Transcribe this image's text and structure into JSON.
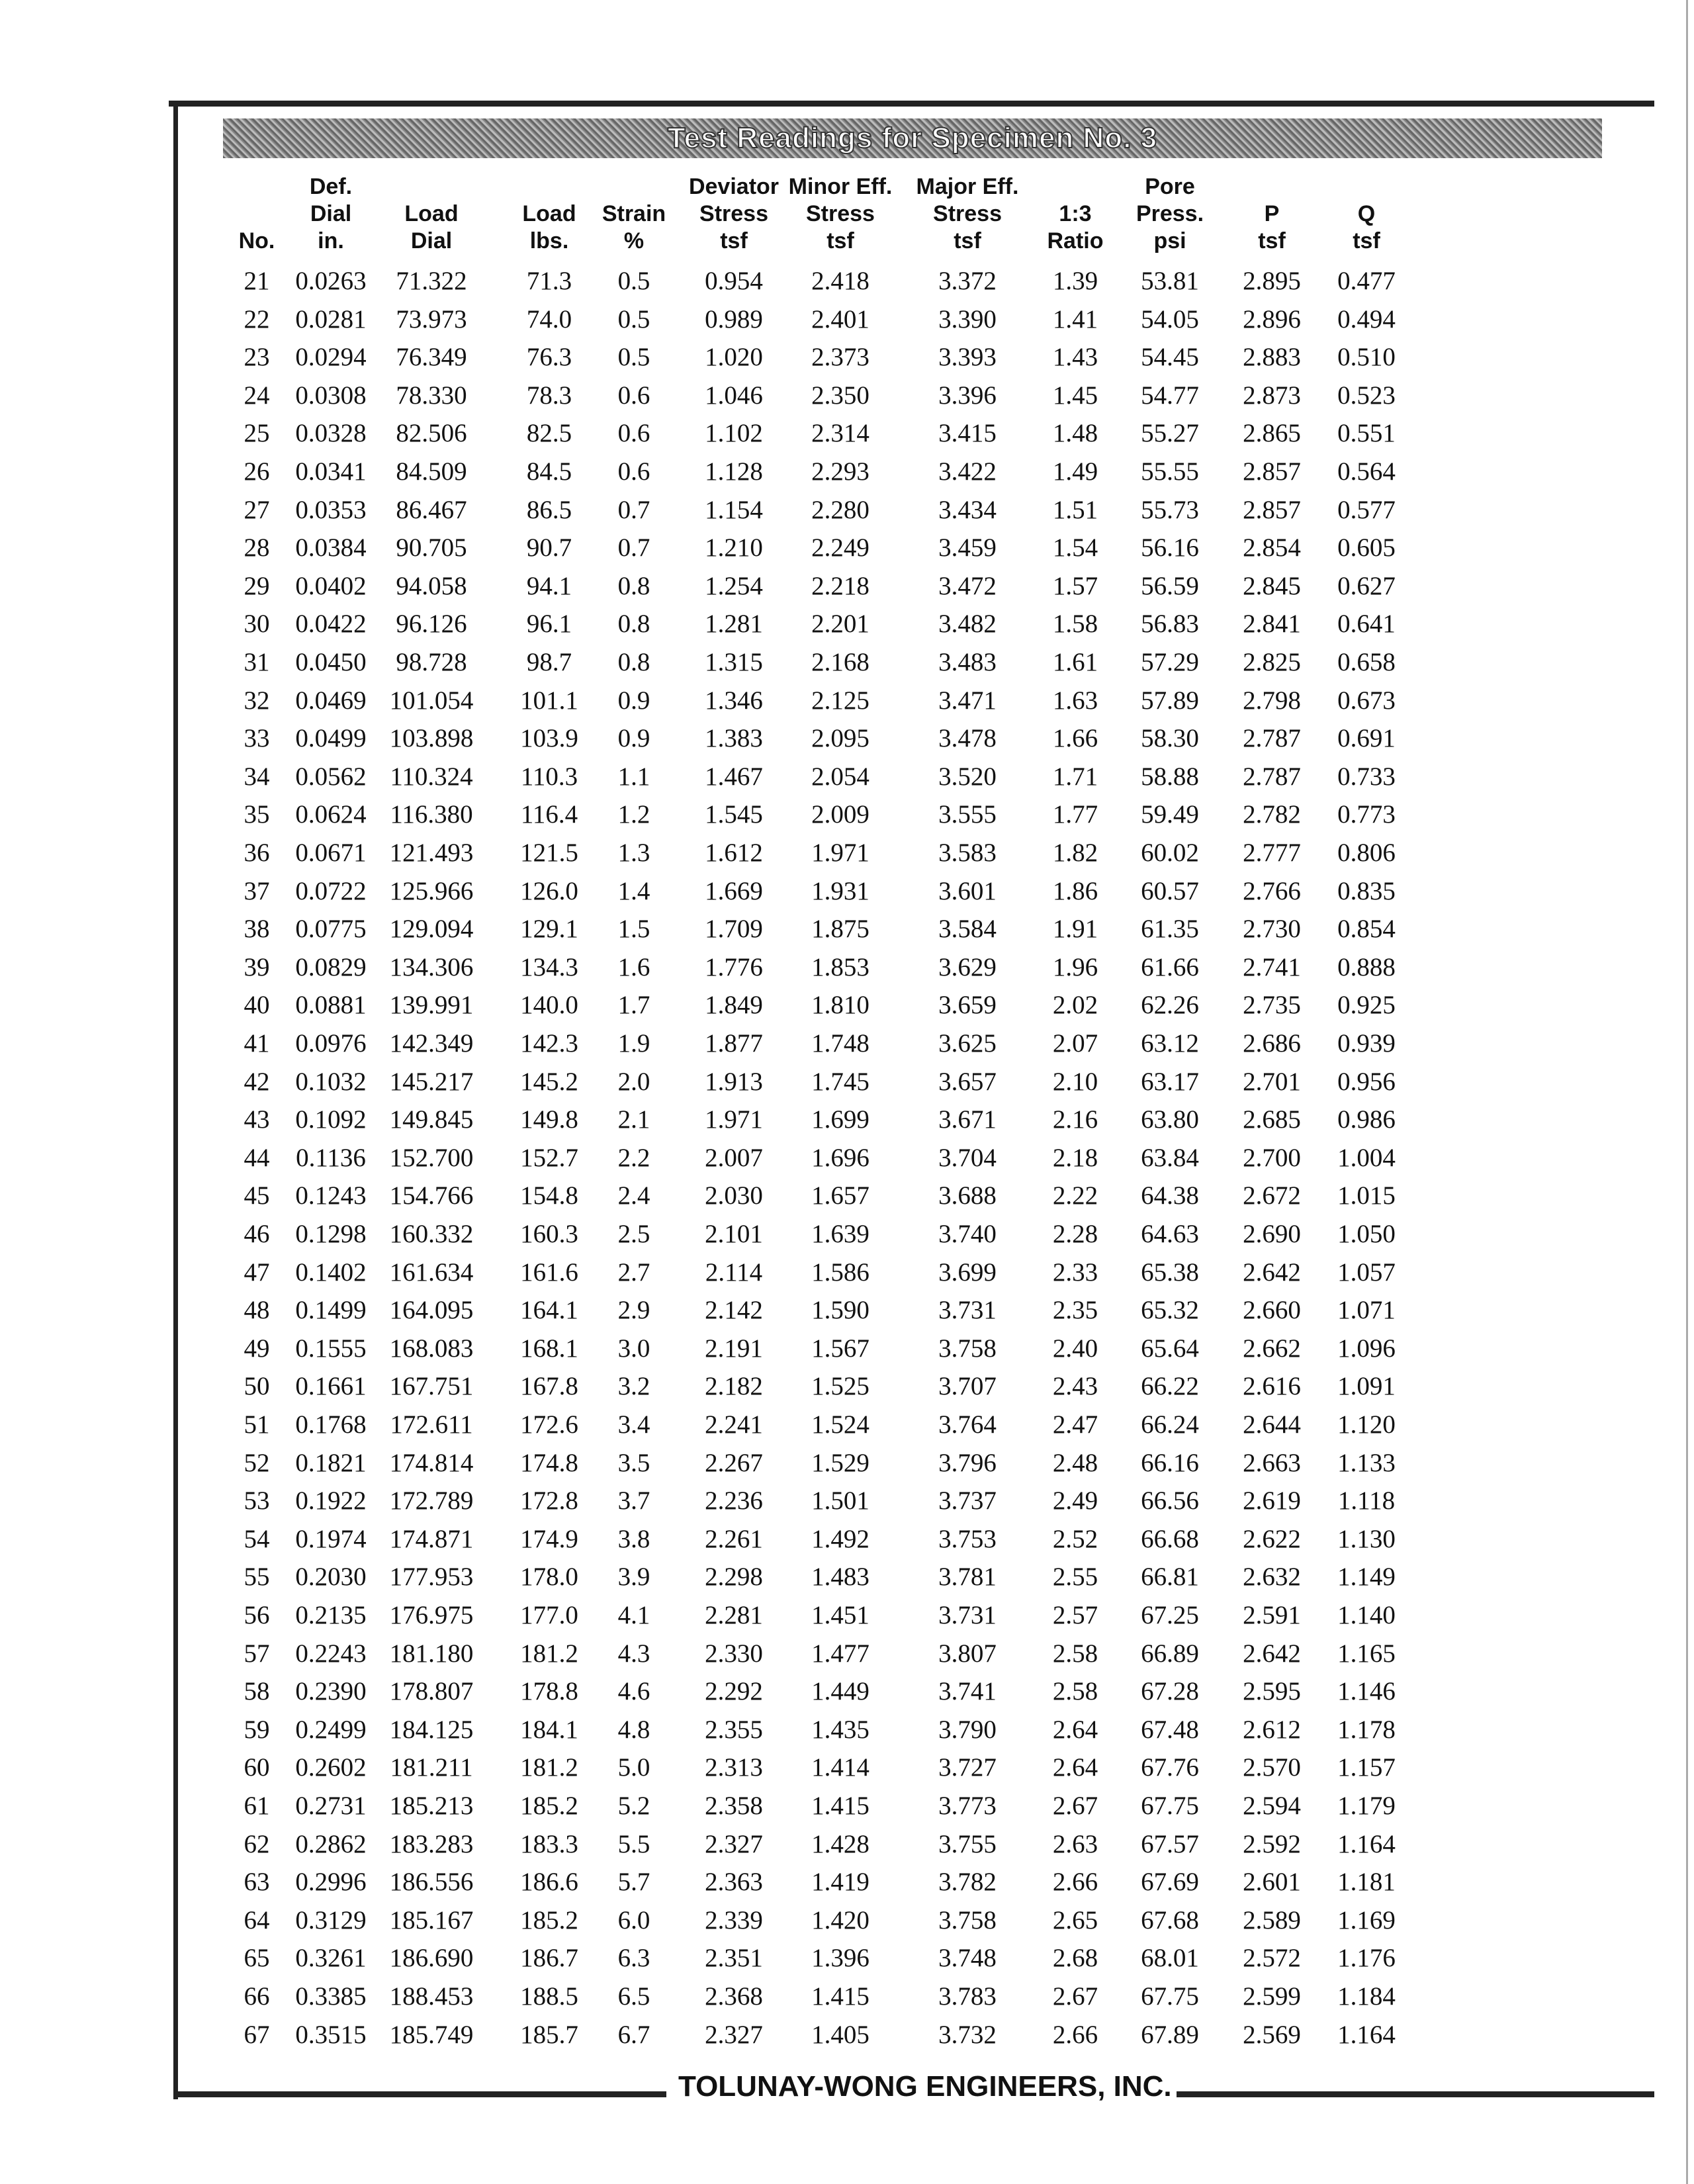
{
  "title": "Test Readings for Specimen No. 3",
  "columns": [
    [
      "",
      "",
      "No."
    ],
    [
      "Def.",
      "Dial",
      "in."
    ],
    [
      "",
      "Load",
      "Dial"
    ],
    [
      "",
      "Load",
      "lbs."
    ],
    [
      "",
      "Strain",
      "%"
    ],
    [
      "Deviator",
      "Stress",
      "tsf"
    ],
    [
      "Minor Eff.",
      "Stress",
      "tsf"
    ],
    [
      "Major Eff.",
      "Stress",
      "tsf"
    ],
    [
      "",
      "1:3",
      "Ratio"
    ],
    [
      "Pore",
      "Press.",
      "psi"
    ],
    [
      "",
      "P",
      "tsf"
    ],
    [
      "",
      "Q",
      "tsf"
    ]
  ],
  "rows": [
    [
      "21",
      "0.0263",
      "71.322",
      "71.3",
      "0.5",
      "0.954",
      "2.418",
      "3.372",
      "1.39",
      "53.81",
      "2.895",
      "0.477"
    ],
    [
      "22",
      "0.0281",
      "73.973",
      "74.0",
      "0.5",
      "0.989",
      "2.401",
      "3.390",
      "1.41",
      "54.05",
      "2.896",
      "0.494"
    ],
    [
      "23",
      "0.0294",
      "76.349",
      "76.3",
      "0.5",
      "1.020",
      "2.373",
      "3.393",
      "1.43",
      "54.45",
      "2.883",
      "0.510"
    ],
    [
      "24",
      "0.0308",
      "78.330",
      "78.3",
      "0.6",
      "1.046",
      "2.350",
      "3.396",
      "1.45",
      "54.77",
      "2.873",
      "0.523"
    ],
    [
      "25",
      "0.0328",
      "82.506",
      "82.5",
      "0.6",
      "1.102",
      "2.314",
      "3.415",
      "1.48",
      "55.27",
      "2.865",
      "0.551"
    ],
    [
      "26",
      "0.0341",
      "84.509",
      "84.5",
      "0.6",
      "1.128",
      "2.293",
      "3.422",
      "1.49",
      "55.55",
      "2.857",
      "0.564"
    ],
    [
      "27",
      "0.0353",
      "86.467",
      "86.5",
      "0.7",
      "1.154",
      "2.280",
      "3.434",
      "1.51",
      "55.73",
      "2.857",
      "0.577"
    ],
    [
      "28",
      "0.0384",
      "90.705",
      "90.7",
      "0.7",
      "1.210",
      "2.249",
      "3.459",
      "1.54",
      "56.16",
      "2.854",
      "0.605"
    ],
    [
      "29",
      "0.0402",
      "94.058",
      "94.1",
      "0.8",
      "1.254",
      "2.218",
      "3.472",
      "1.57",
      "56.59",
      "2.845",
      "0.627"
    ],
    [
      "30",
      "0.0422",
      "96.126",
      "96.1",
      "0.8",
      "1.281",
      "2.201",
      "3.482",
      "1.58",
      "56.83",
      "2.841",
      "0.641"
    ],
    [
      "31",
      "0.0450",
      "98.728",
      "98.7",
      "0.8",
      "1.315",
      "2.168",
      "3.483",
      "1.61",
      "57.29",
      "2.825",
      "0.658"
    ],
    [
      "32",
      "0.0469",
      "101.054",
      "101.1",
      "0.9",
      "1.346",
      "2.125",
      "3.471",
      "1.63",
      "57.89",
      "2.798",
      "0.673"
    ],
    [
      "33",
      "0.0499",
      "103.898",
      "103.9",
      "0.9",
      "1.383",
      "2.095",
      "3.478",
      "1.66",
      "58.30",
      "2.787",
      "0.691"
    ],
    [
      "34",
      "0.0562",
      "110.324",
      "110.3",
      "1.1",
      "1.467",
      "2.054",
      "3.520",
      "1.71",
      "58.88",
      "2.787",
      "0.733"
    ],
    [
      "35",
      "0.0624",
      "116.380",
      "116.4",
      "1.2",
      "1.545",
      "2.009",
      "3.555",
      "1.77",
      "59.49",
      "2.782",
      "0.773"
    ],
    [
      "36",
      "0.0671",
      "121.493",
      "121.5",
      "1.3",
      "1.612",
      "1.971",
      "3.583",
      "1.82",
      "60.02",
      "2.777",
      "0.806"
    ],
    [
      "37",
      "0.0722",
      "125.966",
      "126.0",
      "1.4",
      "1.669",
      "1.931",
      "3.601",
      "1.86",
      "60.57",
      "2.766",
      "0.835"
    ],
    [
      "38",
      "0.0775",
      "129.094",
      "129.1",
      "1.5",
      "1.709",
      "1.875",
      "3.584",
      "1.91",
      "61.35",
      "2.730",
      "0.854"
    ],
    [
      "39",
      "0.0829",
      "134.306",
      "134.3",
      "1.6",
      "1.776",
      "1.853",
      "3.629",
      "1.96",
      "61.66",
      "2.741",
      "0.888"
    ],
    [
      "40",
      "0.0881",
      "139.991",
      "140.0",
      "1.7",
      "1.849",
      "1.810",
      "3.659",
      "2.02",
      "62.26",
      "2.735",
      "0.925"
    ],
    [
      "41",
      "0.0976",
      "142.349",
      "142.3",
      "1.9",
      "1.877",
      "1.748",
      "3.625",
      "2.07",
      "63.12",
      "2.686",
      "0.939"
    ],
    [
      "42",
      "0.1032",
      "145.217",
      "145.2",
      "2.0",
      "1.913",
      "1.745",
      "3.657",
      "2.10",
      "63.17",
      "2.701",
      "0.956"
    ],
    [
      "43",
      "0.1092",
      "149.845",
      "149.8",
      "2.1",
      "1.971",
      "1.699",
      "3.671",
      "2.16",
      "63.80",
      "2.685",
      "0.986"
    ],
    [
      "44",
      "0.1136",
      "152.700",
      "152.7",
      "2.2",
      "2.007",
      "1.696",
      "3.704",
      "2.18",
      "63.84",
      "2.700",
      "1.004"
    ],
    [
      "45",
      "0.1243",
      "154.766",
      "154.8",
      "2.4",
      "2.030",
      "1.657",
      "3.688",
      "2.22",
      "64.38",
      "2.672",
      "1.015"
    ],
    [
      "46",
      "0.1298",
      "160.332",
      "160.3",
      "2.5",
      "2.101",
      "1.639",
      "3.740",
      "2.28",
      "64.63",
      "2.690",
      "1.050"
    ],
    [
      "47",
      "0.1402",
      "161.634",
      "161.6",
      "2.7",
      "2.114",
      "1.586",
      "3.699",
      "2.33",
      "65.38",
      "2.642",
      "1.057"
    ],
    [
      "48",
      "0.1499",
      "164.095",
      "164.1",
      "2.9",
      "2.142",
      "1.590",
      "3.731",
      "2.35",
      "65.32",
      "2.660",
      "1.071"
    ],
    [
      "49",
      "0.1555",
      "168.083",
      "168.1",
      "3.0",
      "2.191",
      "1.567",
      "3.758",
      "2.40",
      "65.64",
      "2.662",
      "1.096"
    ],
    [
      "50",
      "0.1661",
      "167.751",
      "167.8",
      "3.2",
      "2.182",
      "1.525",
      "3.707",
      "2.43",
      "66.22",
      "2.616",
      "1.091"
    ],
    [
      "51",
      "0.1768",
      "172.611",
      "172.6",
      "3.4",
      "2.241",
      "1.524",
      "3.764",
      "2.47",
      "66.24",
      "2.644",
      "1.120"
    ],
    [
      "52",
      "0.1821",
      "174.814",
      "174.8",
      "3.5",
      "2.267",
      "1.529",
      "3.796",
      "2.48",
      "66.16",
      "2.663",
      "1.133"
    ],
    [
      "53",
      "0.1922",
      "172.789",
      "172.8",
      "3.7",
      "2.236",
      "1.501",
      "3.737",
      "2.49",
      "66.56",
      "2.619",
      "1.118"
    ],
    [
      "54",
      "0.1974",
      "174.871",
      "174.9",
      "3.8",
      "2.261",
      "1.492",
      "3.753",
      "2.52",
      "66.68",
      "2.622",
      "1.130"
    ],
    [
      "55",
      "0.2030",
      "177.953",
      "178.0",
      "3.9",
      "2.298",
      "1.483",
      "3.781",
      "2.55",
      "66.81",
      "2.632",
      "1.149"
    ],
    [
      "56",
      "0.2135",
      "176.975",
      "177.0",
      "4.1",
      "2.281",
      "1.451",
      "3.731",
      "2.57",
      "67.25",
      "2.591",
      "1.140"
    ],
    [
      "57",
      "0.2243",
      "181.180",
      "181.2",
      "4.3",
      "2.330",
      "1.477",
      "3.807",
      "2.58",
      "66.89",
      "2.642",
      "1.165"
    ],
    [
      "58",
      "0.2390",
      "178.807",
      "178.8",
      "4.6",
      "2.292",
      "1.449",
      "3.741",
      "2.58",
      "67.28",
      "2.595",
      "1.146"
    ],
    [
      "59",
      "0.2499",
      "184.125",
      "184.1",
      "4.8",
      "2.355",
      "1.435",
      "3.790",
      "2.64",
      "67.48",
      "2.612",
      "1.178"
    ],
    [
      "60",
      "0.2602",
      "181.211",
      "181.2",
      "5.0",
      "2.313",
      "1.414",
      "3.727",
      "2.64",
      "67.76",
      "2.570",
      "1.157"
    ],
    [
      "61",
      "0.2731",
      "185.213",
      "185.2",
      "5.2",
      "2.358",
      "1.415",
      "3.773",
      "2.67",
      "67.75",
      "2.594",
      "1.179"
    ],
    [
      "62",
      "0.2862",
      "183.283",
      "183.3",
      "5.5",
      "2.327",
      "1.428",
      "3.755",
      "2.63",
      "67.57",
      "2.592",
      "1.164"
    ],
    [
      "63",
      "0.2996",
      "186.556",
      "186.6",
      "5.7",
      "2.363",
      "1.419",
      "3.782",
      "2.66",
      "67.69",
      "2.601",
      "1.181"
    ],
    [
      "64",
      "0.3129",
      "185.167",
      "185.2",
      "6.0",
      "2.339",
      "1.420",
      "3.758",
      "2.65",
      "67.68",
      "2.589",
      "1.169"
    ],
    [
      "65",
      "0.3261",
      "186.690",
      "186.7",
      "6.3",
      "2.351",
      "1.396",
      "3.748",
      "2.68",
      "68.01",
      "2.572",
      "1.176"
    ],
    [
      "66",
      "0.3385",
      "188.453",
      "188.5",
      "6.5",
      "2.368",
      "1.415",
      "3.783",
      "2.67",
      "67.75",
      "2.599",
      "1.184"
    ],
    [
      "67",
      "0.3515",
      "185.749",
      "185.7",
      "6.7",
      "2.327",
      "1.405",
      "3.732",
      "2.66",
      "67.89",
      "2.569",
      "1.164"
    ]
  ],
  "footer": "TOLUNAY-WONG ENGINEERS, INC."
}
